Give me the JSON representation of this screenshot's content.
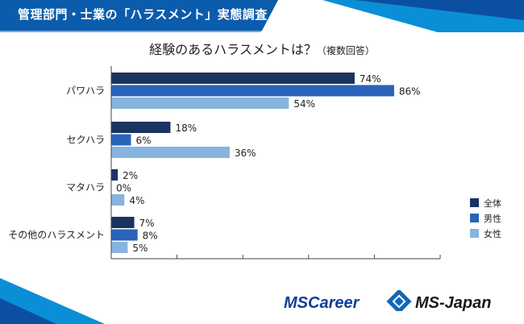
{
  "header": {
    "title": "管理部門・士業の「ハラスメント」実態調査"
  },
  "chart_data": {
    "type": "bar",
    "orientation": "horizontal",
    "title": "経験のあるハラスメントは？",
    "subtitle": "（複数回答）",
    "categories": [
      "パワハラ",
      "セクハラ",
      "マタハラ",
      "その他のハラスメント"
    ],
    "series": [
      {
        "name": "全体",
        "values": [
          74,
          18,
          2,
          7
        ],
        "color": "#1a3461"
      },
      {
        "name": "男性",
        "values": [
          86,
          6,
          0,
          8
        ],
        "color": "#2a63b9"
      },
      {
        "name": "女性",
        "values": [
          54,
          36,
          4,
          5
        ],
        "color": "#87b4de"
      }
    ],
    "value_suffix": "%",
    "xlim": [
      0,
      100
    ],
    "xticks": [
      0,
      20,
      40,
      60,
      80,
      100
    ],
    "grid": false,
    "legend_position": "right"
  },
  "logos": {
    "left": "MSCareer",
    "right": "MS-Japan"
  },
  "colors": {
    "header": "#0b5cad",
    "accent": "#0a8fd6"
  }
}
